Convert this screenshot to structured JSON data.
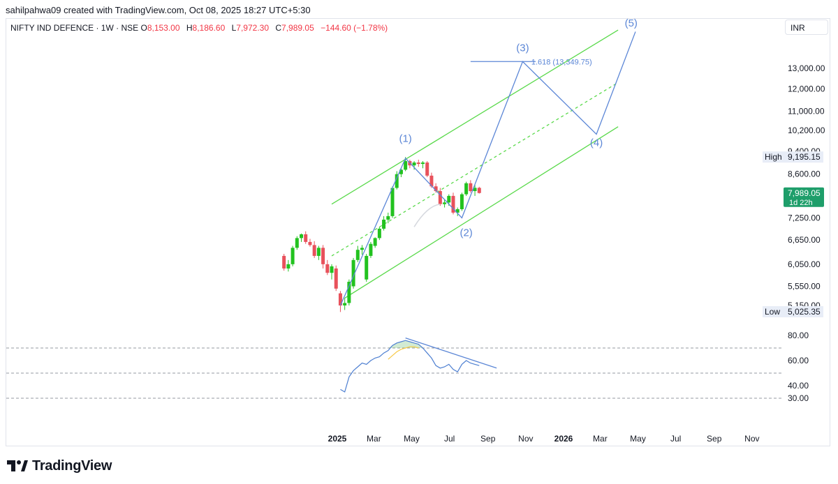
{
  "header": {
    "credit": "sahilpahwa09 created with TradingView.com, Oct 08, 2025 18:27 UTC+5:30"
  },
  "legend": {
    "symbol": "NIFTY IND DEFENCE · 1W · NSE",
    "open_label": "O",
    "open": "8,153.00",
    "high_label": "H",
    "high": "8,186.60",
    "low_label": "L",
    "low": "7,972.30",
    "close_label": "C",
    "close": "7,989.05",
    "change": "−144.60 (−1.78%)"
  },
  "currency": "INR",
  "colors": {
    "up": "#22c21f",
    "down": "#e8515b",
    "channel": "#59d94a",
    "wave": "#5b86d6",
    "rsi": "#4d7fd1",
    "rsi_ma": "#f7c948",
    "grid_dash": "#9598a1",
    "price_badge": "#1e9e6a"
  },
  "footer": {
    "brand": "TradingView"
  },
  "chart_data": [
    {
      "type": "candlestick",
      "title": "NIFTY IND DEFENCE · 1W · NSE",
      "scale": "log",
      "ylim": [
        5000,
        14000
      ],
      "price_axis_ticks": [
        "13,000.00",
        "12,000.00",
        "11,000.00",
        "10,200.00",
        "9,400.00",
        "8,600.00",
        "7,250.00",
        "6,650.00",
        "6,050.00",
        "5,550.00",
        "5,150.00"
      ],
      "price_axis_values": [
        13000,
        12000,
        11000,
        10200,
        9400,
        8600,
        7250,
        6650,
        6050,
        5550,
        5150
      ],
      "time_axis_labels": [
        {
          "label": "2025",
          "bold": true,
          "date": "2025-01-01"
        },
        {
          "label": "Mar",
          "bold": false,
          "date": "2025-03-01"
        },
        {
          "label": "May",
          "bold": false,
          "date": "2025-05-01"
        },
        {
          "label": "Jul",
          "bold": false,
          "date": "2025-07-01"
        },
        {
          "label": "Sep",
          "bold": false,
          "date": "2025-09-01"
        },
        {
          "label": "Nov",
          "bold": false,
          "date": "2025-11-01"
        },
        {
          "label": "2026",
          "bold": true,
          "date": "2026-01-01"
        },
        {
          "label": "Mar",
          "bold": false,
          "date": "2026-03-01"
        },
        {
          "label": "May",
          "bold": false,
          "date": "2026-05-01"
        },
        {
          "label": "Jul",
          "bold": false,
          "date": "2026-07-01"
        },
        {
          "label": "Sep",
          "bold": false,
          "date": "2026-09-01"
        },
        {
          "label": "Nov",
          "bold": false,
          "date": "2026-11-01"
        }
      ],
      "candles": [
        {
          "date": "2024-10-07",
          "o": 6250,
          "h": 6300,
          "l": 5900,
          "c": 5950
        },
        {
          "date": "2024-10-14",
          "o": 5950,
          "h": 6150,
          "l": 5880,
          "c": 6050
        },
        {
          "date": "2024-10-21",
          "o": 6050,
          "h": 6500,
          "l": 6000,
          "c": 6450
        },
        {
          "date": "2024-10-28",
          "o": 6450,
          "h": 6750,
          "l": 6400,
          "c": 6700
        },
        {
          "date": "2024-11-04",
          "o": 6700,
          "h": 6820,
          "l": 6600,
          "c": 6800
        },
        {
          "date": "2024-11-11",
          "o": 6800,
          "h": 6880,
          "l": 6550,
          "c": 6600
        },
        {
          "date": "2024-11-18",
          "o": 6600,
          "h": 6680,
          "l": 6480,
          "c": 6520
        },
        {
          "date": "2024-11-25",
          "o": 6520,
          "h": 6620,
          "l": 6200,
          "c": 6250
        },
        {
          "date": "2024-12-02",
          "o": 6250,
          "h": 6500,
          "l": 6150,
          "c": 6450
        },
        {
          "date": "2024-12-09",
          "o": 6450,
          "h": 6520,
          "l": 5950,
          "c": 6050
        },
        {
          "date": "2024-12-16",
          "o": 6050,
          "h": 6150,
          "l": 5800,
          "c": 5850
        },
        {
          "date": "2024-12-23",
          "o": 5850,
          "h": 6050,
          "l": 5700,
          "c": 6000
        },
        {
          "date": "2024-12-30",
          "o": 5950,
          "h": 6020,
          "l": 5450,
          "c": 5500
        },
        {
          "date": "2025-01-06",
          "o": 5400,
          "h": 5450,
          "l": 5020,
          "c": 5150
        },
        {
          "date": "2025-01-13",
          "o": 5150,
          "h": 5300,
          "l": 5060,
          "c": 5200
        },
        {
          "date": "2025-01-20",
          "o": 5200,
          "h": 5700,
          "l": 5150,
          "c": 5650
        },
        {
          "date": "2025-01-27",
          "o": 5550,
          "h": 6200,
          "l": 5500,
          "c": 6150
        },
        {
          "date": "2025-02-03",
          "o": 6150,
          "h": 6500,
          "l": 6100,
          "c": 6400
        },
        {
          "date": "2025-02-10",
          "o": 6400,
          "h": 6520,
          "l": 6280,
          "c": 6450
        },
        {
          "date": "2025-02-17",
          "o": 5700,
          "h": 6300,
          "l": 5650,
          "c": 6250
        },
        {
          "date": "2025-02-24",
          "o": 6250,
          "h": 6600,
          "l": 6200,
          "c": 6550
        },
        {
          "date": "2025-03-03",
          "o": 6500,
          "h": 6720,
          "l": 6450,
          "c": 6700
        },
        {
          "date": "2025-03-10",
          "o": 6700,
          "h": 7000,
          "l": 6650,
          "c": 6950
        },
        {
          "date": "2025-03-17",
          "o": 6950,
          "h": 7300,
          "l": 6900,
          "c": 7200
        },
        {
          "date": "2025-03-24",
          "o": 7200,
          "h": 7400,
          "l": 7100,
          "c": 7300
        },
        {
          "date": "2025-03-31",
          "o": 7300,
          "h": 8200,
          "l": 7250,
          "c": 8150
        },
        {
          "date": "2025-04-07",
          "o": 8150,
          "h": 8700,
          "l": 8100,
          "c": 8600
        },
        {
          "date": "2025-04-14",
          "o": 8600,
          "h": 8800,
          "l": 8500,
          "c": 8750
        },
        {
          "date": "2025-04-21",
          "o": 8750,
          "h": 9195,
          "l": 8700,
          "c": 9050
        },
        {
          "date": "2025-04-28",
          "o": 9050,
          "h": 9100,
          "l": 8800,
          "c": 8900
        },
        {
          "date": "2025-05-05",
          "o": 8900,
          "h": 9050,
          "l": 8750,
          "c": 9000
        },
        {
          "date": "2025-05-12",
          "o": 9000,
          "h": 9100,
          "l": 8850,
          "c": 8950
        },
        {
          "date": "2025-05-19",
          "o": 8950,
          "h": 9050,
          "l": 8800,
          "c": 9000
        },
        {
          "date": "2025-05-26",
          "o": 9000,
          "h": 9050,
          "l": 8500,
          "c": 8550
        },
        {
          "date": "2025-06-02",
          "o": 8550,
          "h": 8650,
          "l": 8150,
          "c": 8200
        },
        {
          "date": "2025-06-09",
          "o": 8200,
          "h": 8300,
          "l": 8000,
          "c": 8050
        },
        {
          "date": "2025-06-16",
          "o": 8050,
          "h": 8150,
          "l": 7600,
          "c": 7650
        },
        {
          "date": "2025-06-23",
          "o": 7650,
          "h": 7800,
          "l": 7550,
          "c": 7700
        },
        {
          "date": "2025-06-30",
          "o": 7700,
          "h": 7950,
          "l": 7600,
          "c": 7900
        },
        {
          "date": "2025-07-07",
          "o": 7900,
          "h": 8000,
          "l": 7350,
          "c": 7400
        },
        {
          "date": "2025-07-14",
          "o": 7400,
          "h": 7550,
          "l": 7300,
          "c": 7500
        },
        {
          "date": "2025-07-21",
          "o": 7500,
          "h": 8000,
          "l": 7450,
          "c": 7950
        },
        {
          "date": "2025-07-28",
          "o": 7950,
          "h": 8350,
          "l": 7900,
          "c": 8300
        },
        {
          "date": "2025-08-04",
          "o": 8300,
          "h": 8400,
          "l": 8000,
          "c": 8050
        },
        {
          "date": "2025-08-11",
          "o": 8050,
          "h": 8250,
          "l": 7900,
          "c": 8153
        },
        {
          "date": "2025-08-18",
          "o": 8153,
          "h": 8186.6,
          "l": 7972.3,
          "c": 7989.05
        }
      ],
      "annotations": [
        {
          "label": "(1)",
          "date": "2025-04-21",
          "price": 9750,
          "kind": "wave_label"
        },
        {
          "label": "(2)",
          "date": "2025-07-28",
          "price": 6750,
          "kind": "wave_label"
        },
        {
          "label": "(3)",
          "date": "2025-10-27",
          "price": 13900,
          "kind": "wave_label"
        },
        {
          "label": "(4)",
          "date": "2026-02-23",
          "price": 9600,
          "kind": "wave_label"
        },
        {
          "label": "(5)",
          "date": "2026-04-20",
          "price": 15300,
          "kind": "wave_label"
        },
        {
          "label": "1.618 (13,349.75)",
          "date": "2025-11-10",
          "price": 13349.75,
          "kind": "fib_level"
        },
        {
          "label": "High",
          "value": "9,195.15",
          "kind": "axis_badge"
        },
        {
          "label": "Low",
          "value": "5,025.35",
          "kind": "axis_badge"
        },
        {
          "label": "7,989.05",
          "sub": "1d 22h",
          "kind": "price_badge"
        }
      ],
      "wave_path": [
        {
          "date": "2025-01-06",
          "price": 5150
        },
        {
          "date": "2025-04-21",
          "price": 9150
        },
        {
          "date": "2025-07-21",
          "price": 7250
        },
        {
          "date": "2025-10-27",
          "price": 13349.75
        },
        {
          "date": "2026-02-23",
          "price": 10050
        },
        {
          "date": "2026-04-27",
          "price": 15000
        }
      ],
      "channel": {
        "upper": [
          {
            "date": "2024-12-23",
            "price": 7650
          },
          {
            "date": "2026-03-30",
            "price": 15100
          }
        ],
        "middle": [
          {
            "date": "2024-12-23",
            "price": 6250
          },
          {
            "date": "2026-03-30",
            "price": 12300
          }
        ],
        "lower": [
          {
            "date": "2025-01-13",
            "price": 5300
          },
          {
            "date": "2026-03-30",
            "price": 10350
          }
        ]
      },
      "fib_line": {
        "from_date": "2025-08-04",
        "to_date": "2025-11-17",
        "price": 13349.75
      }
    },
    {
      "type": "line",
      "title": "",
      "ylim": [
        28,
        88
      ],
      "axis_ticks": [
        "80.00",
        "60.00",
        "40.00",
        "30.00"
      ],
      "axis_values": [
        80,
        60,
        40,
        30
      ],
      "reference_lines": [
        70,
        50,
        30
      ],
      "series": [
        {
          "name": "",
          "x": [
            "2025-01-06",
            "2025-01-13",
            "2025-01-20",
            "2025-01-27",
            "2025-02-03",
            "2025-02-10",
            "2025-02-17",
            "2025-02-24",
            "2025-03-03",
            "2025-03-10",
            "2025-03-17",
            "2025-03-24",
            "2025-03-31",
            "2025-04-07",
            "2025-04-14",
            "2025-04-21",
            "2025-04-28",
            "2025-05-05",
            "2025-05-12",
            "2025-05-19",
            "2025-05-26",
            "2025-06-02",
            "2025-06-09",
            "2025-06-16",
            "2025-06-23",
            "2025-06-30",
            "2025-07-07",
            "2025-07-14",
            "2025-07-21",
            "2025-07-28",
            "2025-08-04",
            "2025-08-11",
            "2025-08-18"
          ],
          "values": [
            37,
            35,
            47,
            52,
            55,
            58,
            57,
            60,
            62,
            63,
            66,
            68,
            72,
            74,
            75,
            76,
            75,
            74,
            73,
            70,
            66,
            62,
            56,
            54,
            55,
            57,
            53,
            51,
            57,
            60,
            58,
            57,
            56
          ]
        },
        {
          "name": "",
          "x": [
            "2025-03-24",
            "2025-03-31",
            "2025-04-07",
            "2025-04-14",
            "2025-04-21",
            "2025-04-28",
            "2025-05-05",
            "2025-05-12"
          ],
          "values": [
            61,
            64,
            67,
            69,
            70,
            71,
            71,
            70
          ]
        }
      ],
      "divergence_line": [
        {
          "date": "2025-04-21",
          "value": 78
        },
        {
          "date": "2025-09-15",
          "value": 54
        }
      ]
    }
  ]
}
